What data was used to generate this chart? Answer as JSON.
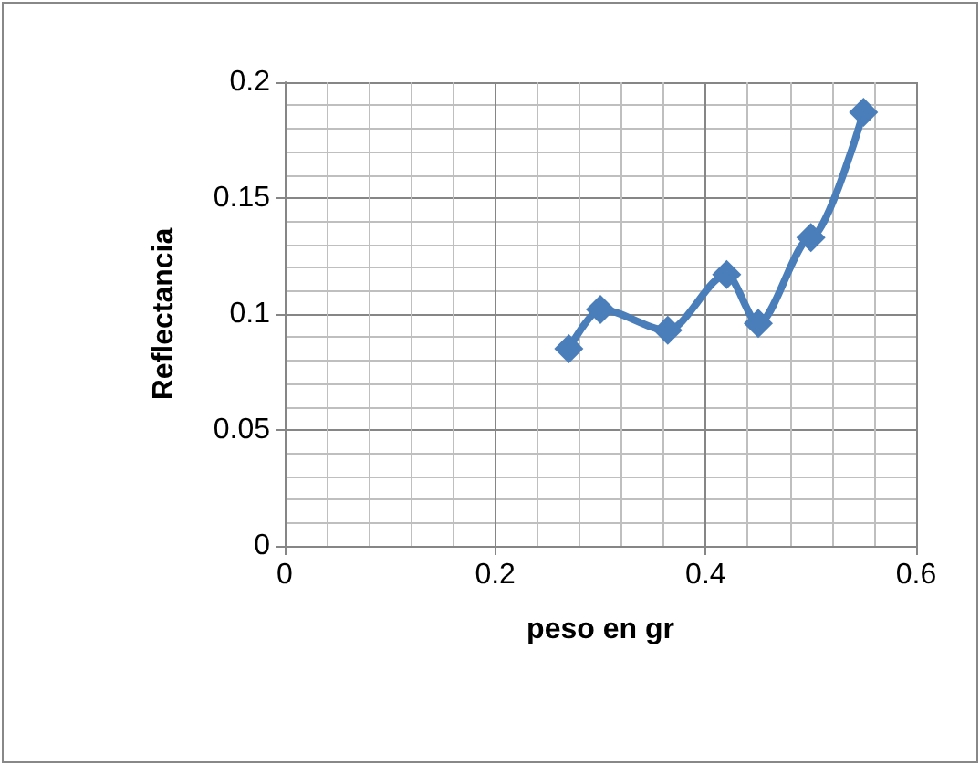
{
  "chart_data": {
    "type": "line",
    "xlabel": "peso en gr",
    "ylabel": "Reflectancia",
    "x": [
      0.27,
      0.3,
      0.364,
      0.42,
      0.45,
      0.5,
      0.55
    ],
    "series": [
      {
        "color": "#4a7ebb",
        "values": [
          0.085,
          0.102,
          0.093,
          0.117,
          0.096,
          0.133,
          0.187
        ]
      }
    ],
    "xlim": [
      0,
      0.6
    ],
    "xticks": [
      0,
      0.2,
      0.4,
      0.6
    ],
    "ylim": [
      0,
      0.2
    ],
    "yticks": [
      0,
      0.05,
      0.1,
      0.15,
      0.2
    ],
    "grid": true,
    "marker": "diamond",
    "line_style": "solid"
  }
}
